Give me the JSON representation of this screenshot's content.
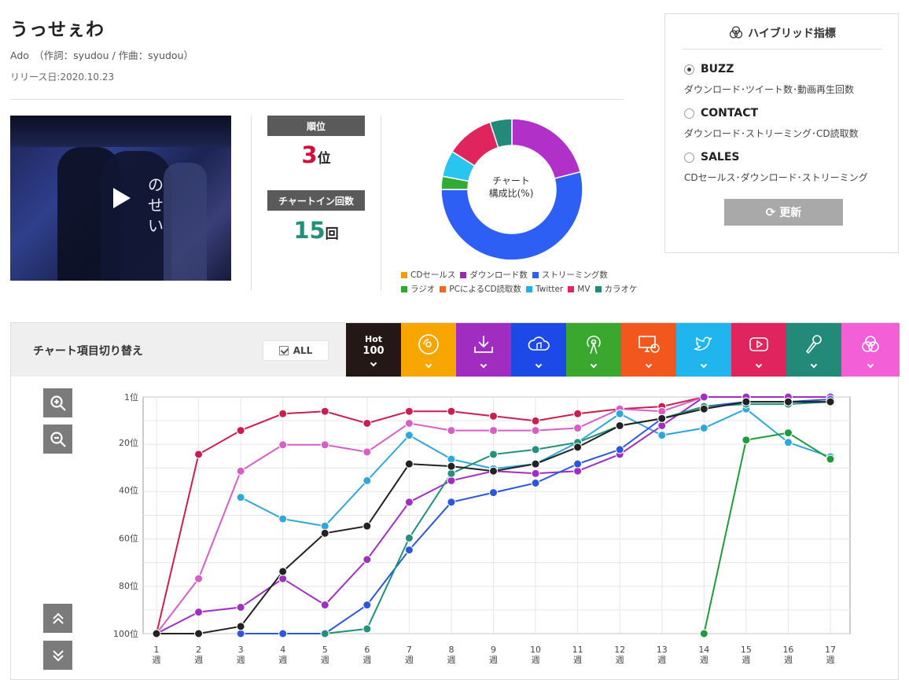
{
  "song": {
    "title": "うっせぇわ",
    "artist_line": "Ado　（作詞：syudou / 作曲：syudou）",
    "release_line": "リリース日:2020.10.23"
  },
  "stats": {
    "rank_label": "順位",
    "rank_value": "3",
    "rank_unit": "位",
    "chart_in_label": "チャートイン回数",
    "chart_in_value": "15",
    "chart_in_unit": "回"
  },
  "thumbnail_text": "のせい",
  "donut": {
    "center_line1": "チャート",
    "center_line2": "構成比(%)",
    "legend": [
      {
        "label": "CDセールス",
        "color": "#f39c12"
      },
      {
        "label": "ダウンロード数",
        "color": "#9b27b0"
      },
      {
        "label": "ストリーミング数",
        "color": "#2e5ff5"
      },
      {
        "label": "ラジオ",
        "color": "#2eaa2e"
      },
      {
        "label": "PCによるCD読取数",
        "color": "#f26522"
      },
      {
        "label": "Twitter",
        "color": "#29abe2"
      },
      {
        "label": "MV",
        "color": "#e0245e"
      },
      {
        "label": "カラオケ",
        "color": "#238a7a"
      }
    ],
    "slices": [
      {
        "label": "ダウンロード数",
        "value": 21,
        "color": "#b030c8"
      },
      {
        "label": "ストリーミング数",
        "value": 54,
        "color": "#2e5ff5"
      },
      {
        "label": "ラジオ",
        "value": 3,
        "color": "#33aa33"
      },
      {
        "label": "Twitter",
        "value": 6,
        "color": "#29c4ef"
      },
      {
        "label": "MV",
        "value": 11,
        "color": "#e0245e"
      },
      {
        "label": "カラオケ",
        "value": 5,
        "color": "#238a7a"
      }
    ]
  },
  "hybrid": {
    "title": "ハイブリッド指標",
    "options": [
      {
        "label": "BUZZ",
        "desc": "ダウンロード･ツイート数･動画再生回数",
        "selected": true
      },
      {
        "label": "CONTACT",
        "desc": "ダウンロード･ストリーミング･CD読取数",
        "selected": false
      },
      {
        "label": "SALES",
        "desc": "CDセールス･ダウンロード･ストリーミング",
        "selected": false
      }
    ],
    "refresh_label": "更新"
  },
  "toolbar": {
    "title": "チャート項目切り替え",
    "all_label": "ALL",
    "hot_line1": "Hot",
    "hot_line2": "100",
    "tabs": [
      {
        "name": "hot100",
        "color": "#231815"
      },
      {
        "name": "cd-sales",
        "color": "#f7a600"
      },
      {
        "name": "download",
        "color": "#a12cc0"
      },
      {
        "name": "streaming",
        "color": "#1d49e8"
      },
      {
        "name": "radio",
        "color": "#3aa82e"
      },
      {
        "name": "pc-cd-read",
        "color": "#f2581e"
      },
      {
        "name": "twitter",
        "color": "#20b5ef"
      },
      {
        "name": "mv",
        "color": "#e0245e"
      },
      {
        "name": "karaoke",
        "color": "#238a7a"
      },
      {
        "name": "hybrid",
        "color": "#f35fd7"
      }
    ]
  },
  "chart_data": {
    "type": "line",
    "y_reversed": true,
    "ylim": [
      1,
      100
    ],
    "y_ticks": [
      "1位",
      "20位",
      "40位",
      "60位",
      "80位",
      "100位"
    ],
    "y_tick_values": [
      1,
      20,
      40,
      60,
      80,
      100
    ],
    "x_ticks": [
      [
        "1",
        "週"
      ],
      [
        "2",
        "週"
      ],
      [
        "3",
        "週"
      ],
      [
        "4",
        "週"
      ],
      [
        "5",
        "週"
      ],
      [
        "6",
        "週"
      ],
      [
        "7",
        "週"
      ],
      [
        "8",
        "週"
      ],
      [
        "9",
        "週"
      ],
      [
        "10",
        "週"
      ],
      [
        "11",
        "週"
      ],
      [
        "12",
        "週"
      ],
      [
        "13",
        "週"
      ],
      [
        "14",
        "週"
      ],
      [
        "15",
        "週"
      ],
      [
        "16",
        "週"
      ],
      [
        "17",
        "週"
      ]
    ],
    "grid": true,
    "series": [
      {
        "color": "#ca1f4e",
        "values": [
          100,
          25,
          15,
          8,
          7,
          12,
          7,
          7,
          9,
          11,
          8,
          6,
          5,
          1,
          1,
          1,
          1
        ]
      },
      {
        "color": "#d65ec5",
        "values": [
          100,
          77,
          32,
          21,
          21,
          24,
          12,
          15,
          15,
          15,
          14,
          6,
          7,
          1,
          1,
          1,
          1
        ]
      },
      {
        "color": "#2fa7d8",
        "values": [
          null,
          null,
          43,
          52,
          55,
          36,
          17,
          27,
          31,
          29,
          20,
          8,
          17,
          14,
          6,
          20,
          26
        ]
      },
      {
        "color": "#9f2fc0",
        "values": [
          100,
          91,
          89,
          77,
          88,
          69,
          45,
          36,
          32,
          33,
          32,
          25,
          13,
          1,
          1,
          1,
          1
        ]
      },
      {
        "color": "#2c56dc",
        "values": [
          null,
          null,
          100,
          100,
          100,
          88,
          65,
          45,
          41,
          37,
          29,
          23,
          10,
          5,
          3,
          3,
          2
        ]
      },
      {
        "color": "#22907a",
        "values": [
          null,
          null,
          null,
          null,
          100,
          98,
          60,
          33,
          25,
          23,
          20,
          13,
          10,
          5,
          4,
          4,
          3
        ]
      },
      {
        "color": "#1f9a3c",
        "values": [
          null,
          null,
          null,
          null,
          null,
          null,
          null,
          null,
          null,
          null,
          null,
          null,
          null,
          100,
          19,
          16,
          27
        ]
      },
      {
        "color": "#222222",
        "values": [
          100,
          100,
          97,
          74,
          58,
          55,
          29,
          30,
          32,
          29,
          22,
          13,
          10,
          6,
          3,
          3,
          3
        ]
      }
    ]
  }
}
